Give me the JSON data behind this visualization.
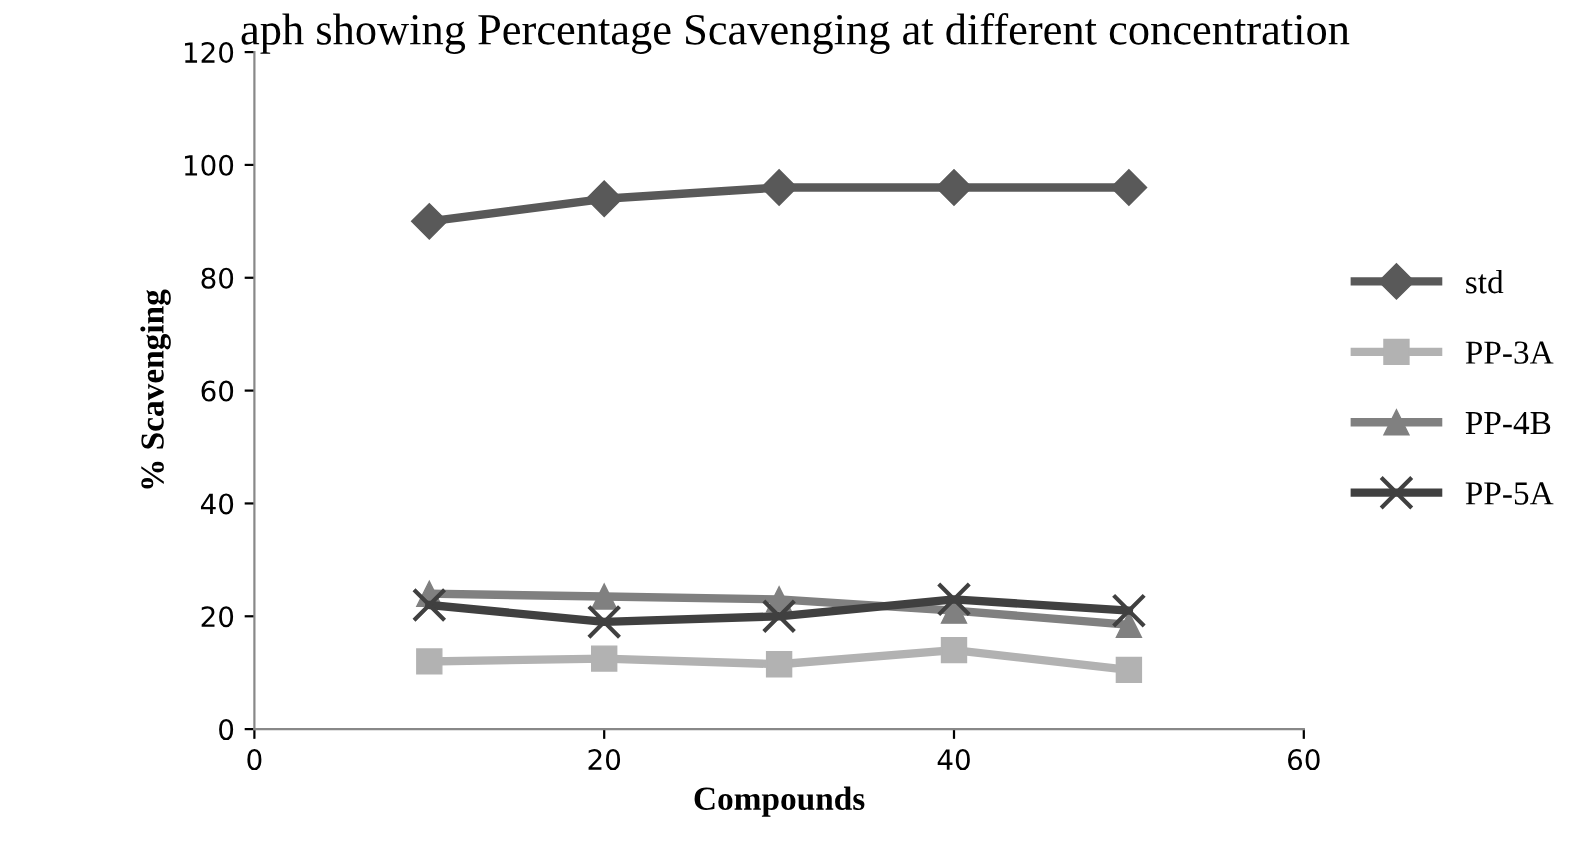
{
  "chart_data": {
    "type": "line",
    "title": "aph showing Percentage Scavenging at different concentration",
    "xlabel": "Compounds",
    "ylabel": "% Scavenging",
    "x": [
      10,
      20,
      30,
      40,
      50
    ],
    "series": [
      {
        "name": "std",
        "color": "#595959",
        "marker": "diamond",
        "values": [
          90,
          94,
          96,
          96,
          96
        ]
      },
      {
        "name": "PP-3A",
        "color": "#b2b2b2",
        "marker": "square",
        "values": [
          12,
          12.5,
          11.5,
          14,
          10.5
        ]
      },
      {
        "name": "PP-4B",
        "color": "#808080",
        "marker": "triangle",
        "values": [
          24,
          23.5,
          23,
          21,
          18.5
        ]
      },
      {
        "name": "PP-5A",
        "color": "#404040",
        "marker": "cross",
        "values": [
          22,
          19,
          20,
          23,
          21
        ]
      }
    ],
    "xlim": [
      0,
      60
    ],
    "xticks": [
      0,
      20,
      40,
      60
    ],
    "ylim": [
      0,
      120
    ],
    "yticks": [
      0,
      20,
      40,
      60,
      80,
      100,
      120
    ],
    "grid": false,
    "legend": "right"
  }
}
